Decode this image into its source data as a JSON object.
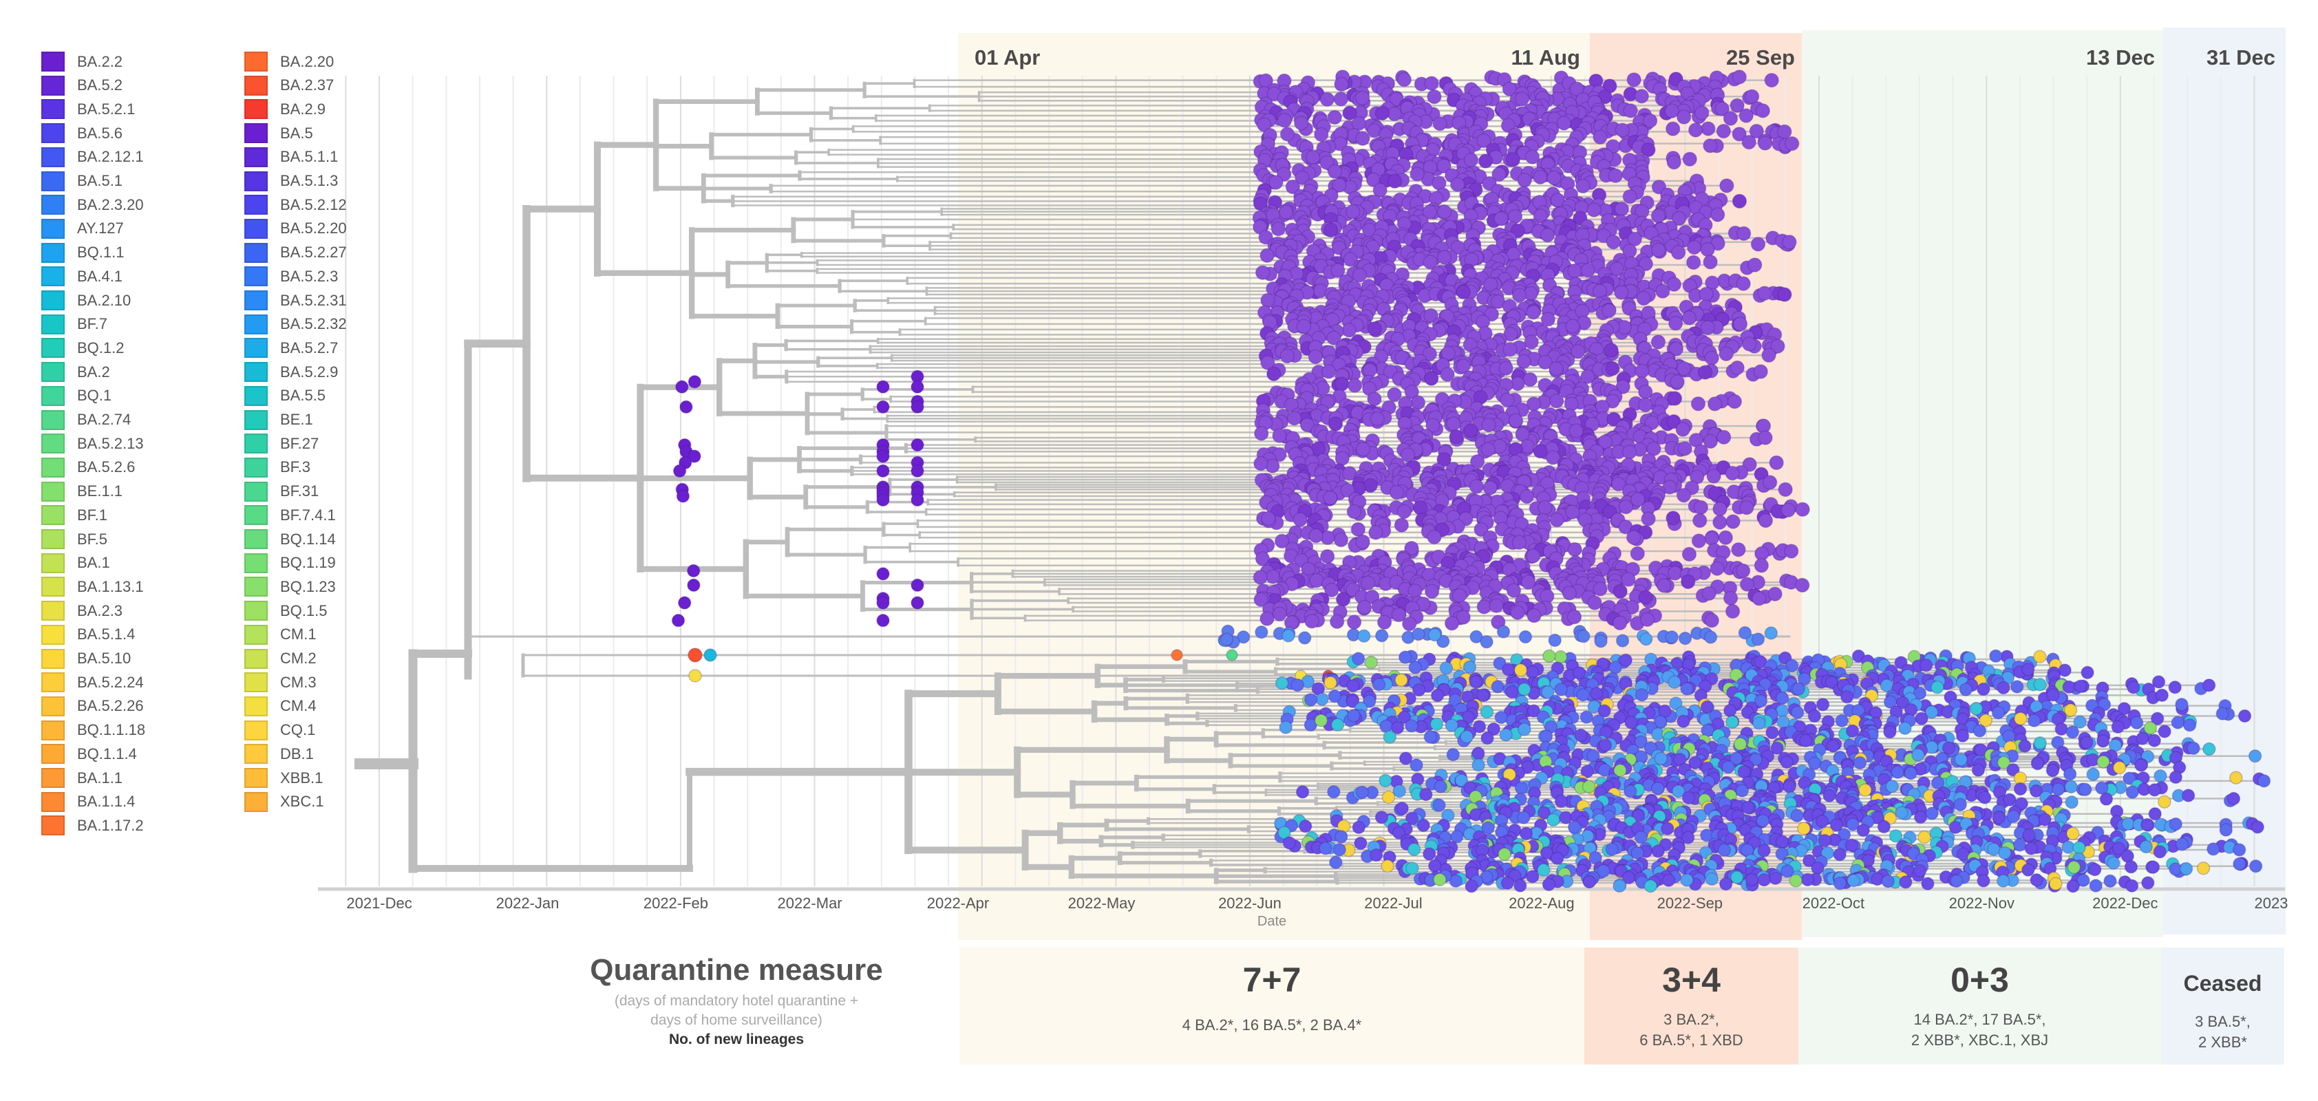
{
  "legend": {
    "col1": [
      {
        "label": "BA.2.2",
        "color": "#6a1fd0"
      },
      {
        "label": "BA.5.2",
        "color": "#6526d8"
      },
      {
        "label": "BA.5.2.1",
        "color": "#5a33e6"
      },
      {
        "label": "BA.5.6",
        "color": "#4d44f0"
      },
      {
        "label": "BA.2.12.1",
        "color": "#4257f3"
      },
      {
        "label": "BA.5.1",
        "color": "#3a6af5"
      },
      {
        "label": "BA.2.3.20",
        "color": "#2f80f5"
      },
      {
        "label": "AY.127",
        "color": "#2592f5"
      },
      {
        "label": "BQ.1.1",
        "color": "#1ca4f0"
      },
      {
        "label": "BA.4.1",
        "color": "#16b2e8"
      },
      {
        "label": "BA.2.10",
        "color": "#14bcd8"
      },
      {
        "label": "BF.7",
        "color": "#18c6c8"
      },
      {
        "label": "BQ.1.2",
        "color": "#22ccb8"
      },
      {
        "label": "BA.2",
        "color": "#2fd0a8"
      },
      {
        "label": "BQ.1",
        "color": "#40d59a"
      },
      {
        "label": "BA.2.74",
        "color": "#52d98c"
      },
      {
        "label": "BA.5.2.13",
        "color": "#62dc80"
      },
      {
        "label": "BA.5.2.6",
        "color": "#72de76"
      },
      {
        "label": "BE.1.1",
        "color": "#84e06c"
      },
      {
        "label": "BF.1",
        "color": "#98e164"
      },
      {
        "label": "BF.5",
        "color": "#ace15c"
      },
      {
        "label": "BA.1",
        "color": "#c2e254"
      },
      {
        "label": "BA.1.13.1",
        "color": "#d6e24c"
      },
      {
        "label": "BA.2.3",
        "color": "#e8e044"
      },
      {
        "label": "BA.5.1.4",
        "color": "#f8df3e"
      },
      {
        "label": "BA.5.10",
        "color": "#fdd63c"
      },
      {
        "label": "BA.5.2.24",
        "color": "#fecd3a"
      },
      {
        "label": "BA.5.2.26",
        "color": "#fec238"
      },
      {
        "label": "BQ.1.1.18",
        "color": "#feb636"
      },
      {
        "label": "BQ.1.1.4",
        "color": "#fea934"
      },
      {
        "label": "BA.1.1",
        "color": "#fd9a34"
      },
      {
        "label": "BA.1.1.4",
        "color": "#fd8a32"
      },
      {
        "label": "BA.1.17.2",
        "color": "#fc7430"
      }
    ],
    "col2": [
      {
        "label": "BA.2.20",
        "color": "#fc6a30"
      },
      {
        "label": "BA.2.37",
        "color": "#fb5230"
      },
      {
        "label": "BA.2.9",
        "color": "#f73a2e"
      },
      {
        "label": "BA.5",
        "color": "#6a1fd0"
      },
      {
        "label": "BA.5.1.1",
        "color": "#5f2ad8"
      },
      {
        "label": "BA.5.1.3",
        "color": "#5635e2"
      },
      {
        "label": "BA.5.2.12",
        "color": "#4c44ee"
      },
      {
        "label": "BA.5.2.20",
        "color": "#4353f2"
      },
      {
        "label": "BA.5.2.27",
        "color": "#3b66f4"
      },
      {
        "label": "BA.5.2.3",
        "color": "#3478f5"
      },
      {
        "label": "BA.5.2.31",
        "color": "#2b8af5"
      },
      {
        "label": "BA.5.2.32",
        "color": "#229cf2"
      },
      {
        "label": "BA.5.2.7",
        "color": "#1cacea"
      },
      {
        "label": "BA.5.2.9",
        "color": "#18bad8"
      },
      {
        "label": "BA.5.5",
        "color": "#1ac4c8"
      },
      {
        "label": "BE.1",
        "color": "#22cab8"
      },
      {
        "label": "BF.27",
        "color": "#2ed0a8"
      },
      {
        "label": "BF.3",
        "color": "#3cd49c"
      },
      {
        "label": "BF.31",
        "color": "#4ad790"
      },
      {
        "label": "BF.7.4.1",
        "color": "#58da86"
      },
      {
        "label": "BQ.1.14",
        "color": "#66dc7c"
      },
      {
        "label": "BQ.1.19",
        "color": "#76de72"
      },
      {
        "label": "BQ.1.23",
        "color": "#88e06a"
      },
      {
        "label": "BQ.1.5",
        "color": "#9ce162"
      },
      {
        "label": "CM.1",
        "color": "#b4e25a"
      },
      {
        "label": "CM.2",
        "color": "#cae250"
      },
      {
        "label": "CM.3",
        "color": "#e0e148"
      },
      {
        "label": "CM.4",
        "color": "#f4df40"
      },
      {
        "label": "CQ.1",
        "color": "#fdd53c"
      },
      {
        "label": "DB.1",
        "color": "#fec93a"
      },
      {
        "label": "XBB.1",
        "color": "#febc38"
      },
      {
        "label": "XBC.1",
        "color": "#feb036"
      }
    ]
  },
  "chart_data": {
    "type": "scatter",
    "subtype": "time-scaled phylogenetic tree",
    "xlabel": "Date",
    "x_ticks": [
      {
        "label": "2021-Dec",
        "date": "2021-12-01"
      },
      {
        "label": "2022-Jan",
        "date": "2022-01-01"
      },
      {
        "label": "2022-Feb",
        "date": "2022-02-01"
      },
      {
        "label": "2022-Mar",
        "date": "2022-03-01"
      },
      {
        "label": "2022-Apr",
        "date": "2022-04-01"
      },
      {
        "label": "2022-May",
        "date": "2022-05-01"
      },
      {
        "label": "2022-Jun",
        "date": "2022-06-01"
      },
      {
        "label": "2022-Jul",
        "date": "2022-07-01"
      },
      {
        "label": "2022-Aug",
        "date": "2022-08-01"
      },
      {
        "label": "2022-Sep",
        "date": "2022-09-01"
      },
      {
        "label": "2022-Oct",
        "date": "2022-10-01"
      },
      {
        "label": "2022-Nov",
        "date": "2022-11-01"
      },
      {
        "label": "2022-Dec",
        "date": "2022-12-01"
      },
      {
        "label": "2023",
        "date": "2023-01-01"
      }
    ],
    "x_range": [
      "2021-11-20",
      "2023-01-03"
    ],
    "bands": [
      {
        "start": "2022-04-01",
        "end": "2022-08-11",
        "color": "#fdf8ec",
        "start_label": "01 Apr",
        "end_label": "11 Aug"
      },
      {
        "start": "2022-08-11",
        "end": "2022-09-25",
        "color": "#fde3d6",
        "end_label": "25 Sep"
      },
      {
        "start": "2022-09-25",
        "end": "2022-12-13",
        "color": "#f0f7f0",
        "end_label": "13 Dec"
      },
      {
        "start": "2022-12-13",
        "end": "2022-12-31",
        "color": "#eef3f9",
        "end_label": "31 Dec"
      }
    ]
  },
  "quarantine": {
    "title": "Quarantine measure",
    "subtitle_1": "(days of mandatory hotel quarantine +",
    "subtitle_2": "days of home surveillance)",
    "row_label": "No. of new lineages",
    "periods": [
      {
        "measure": "7+7",
        "lineages_1": "4 BA.2*, 16 BA.5*, 2 BA.4*",
        "lineages_2": ""
      },
      {
        "measure": "3+4",
        "lineages_1": "3 BA.2*,",
        "lineages_2": "6 BA.5*, 1 XBD"
      },
      {
        "measure": "0+3",
        "lineages_1": "14 BA.2*, 17 BA.5*,",
        "lineages_2": "2 XBB*, XBC.1, XBJ"
      },
      {
        "measure": "Ceased",
        "lineages_1": "3 BA.5*,",
        "lineages_2": "2 XBB*"
      }
    ]
  }
}
